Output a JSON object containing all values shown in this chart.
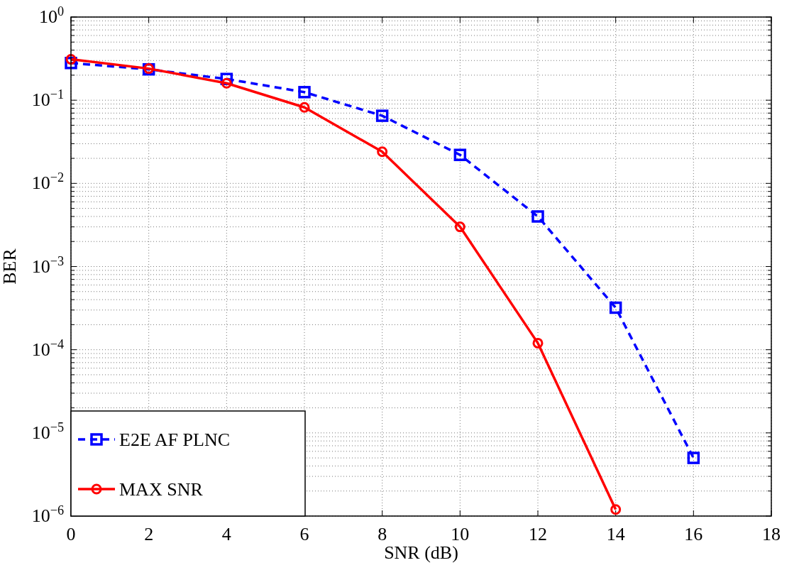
{
  "chart_data": {
    "type": "line",
    "xlabel": "SNR (dB)",
    "ylabel": "BER",
    "x": [
      0,
      2,
      4,
      6,
      8,
      10,
      12,
      14,
      16
    ],
    "series": [
      {
        "name": "E2E AF PLNC",
        "color": "#0000ff",
        "marker": "square",
        "line_style": "dashed",
        "values": [
          0.28,
          0.235,
          0.18,
          0.125,
          0.065,
          0.022,
          0.004,
          0.00032,
          5e-06
        ]
      },
      {
        "name": "MAX SNR",
        "color": "#ff0000",
        "marker": "circle",
        "line_style": "solid",
        "values": [
          0.31,
          0.24,
          0.16,
          0.082,
          0.024,
          0.003,
          0.00012,
          1.2e-06,
          null
        ]
      }
    ],
    "log": "y",
    "xlim": [
      0,
      18
    ],
    "xticks": [
      0,
      2,
      4,
      6,
      8,
      10,
      12,
      14,
      16,
      18
    ],
    "ylim": [
      1e-06,
      1
    ],
    "yticks": [
      {
        "value": 1e-06,
        "label": "10$^{−6}$"
      },
      {
        "value": 1e-05,
        "label": "10$^{−5}$"
      },
      {
        "value": 0.0001,
        "label": "10$^{−4}$"
      },
      {
        "value": 0.001,
        "label": "10$^{−3}$"
      },
      {
        "value": 0.01,
        "label": "10$^{−2}$"
      },
      {
        "value": 0.1,
        "label": "10$^{−1}$"
      },
      {
        "value": 1,
        "label": "10$^{0}$"
      }
    ],
    "grid": true,
    "legend": "bottom left"
  }
}
